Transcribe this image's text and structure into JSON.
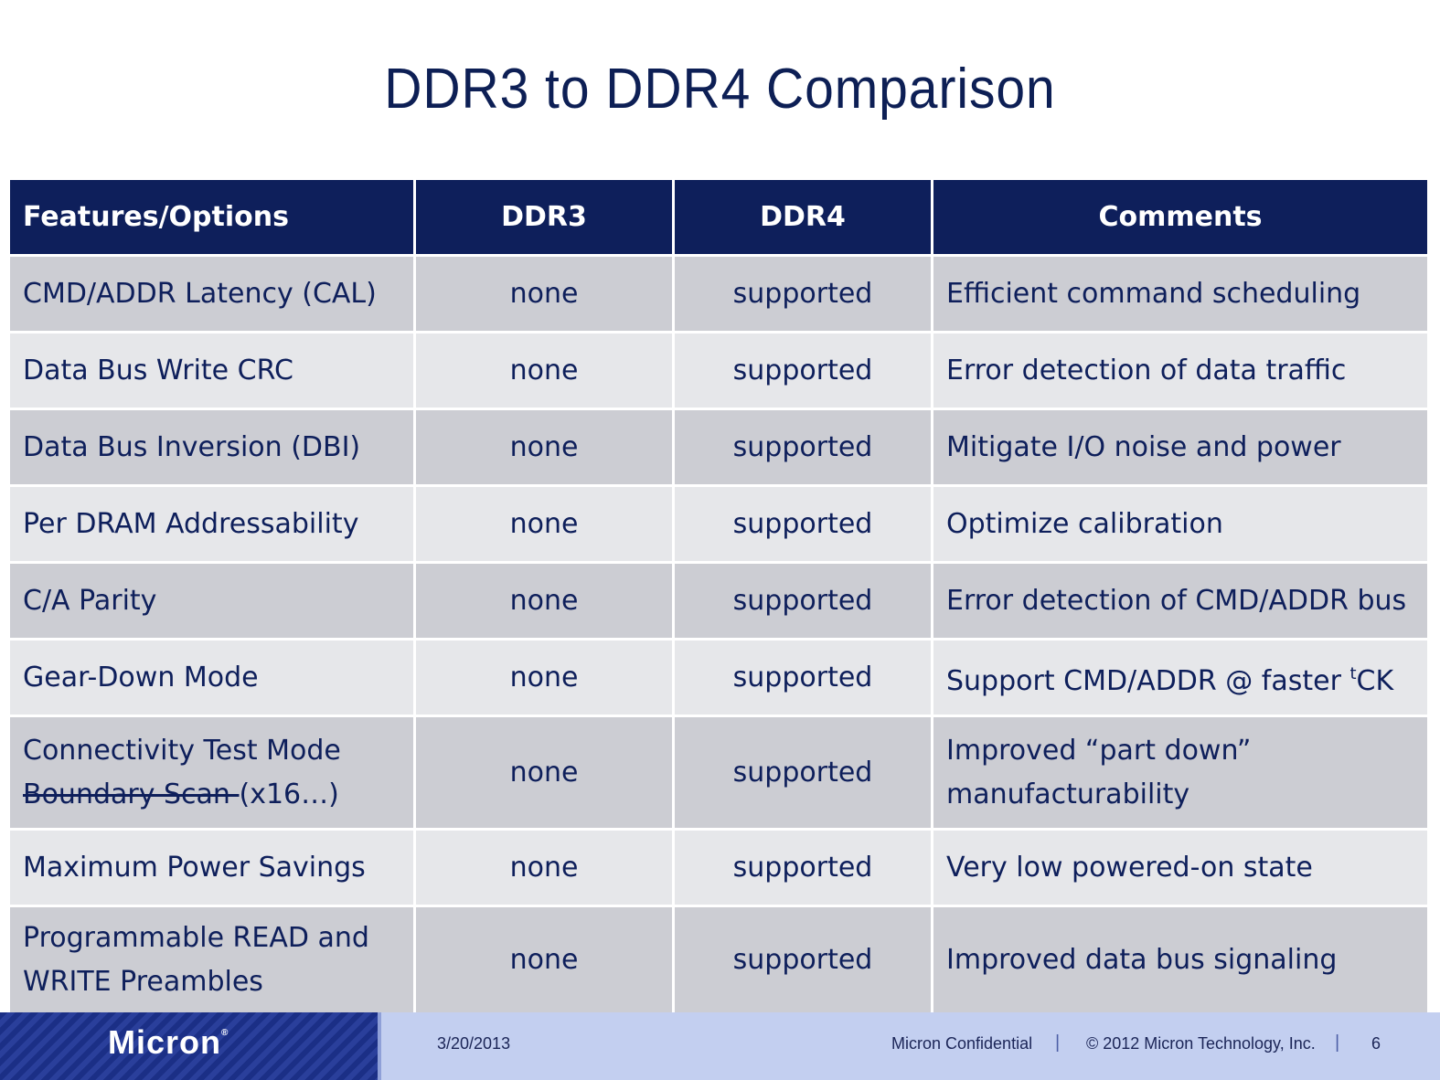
{
  "title": "DDR3 to DDR4 Comparison",
  "table": {
    "headers": [
      "Features/Options",
      "DDR3",
      "DDR4",
      "Comments"
    ],
    "rows": [
      {
        "feature": "CMD/ADDR Latency (CAL)",
        "ddr3": "none",
        "ddr4": "supported",
        "comment": "Efficient command scheduling"
      },
      {
        "feature": "Data Bus Write CRC",
        "ddr3": "none",
        "ddr4": "supported",
        "comment": "Error detection of data traffic"
      },
      {
        "feature": "Data Bus Inversion (DBI)",
        "ddr3": "none",
        "ddr4": "supported",
        "comment": "Mitigate I/O noise and power"
      },
      {
        "feature": "Per DRAM Addressability",
        "ddr3": "none",
        "ddr4": "supported",
        "comment": "Optimize calibration"
      },
      {
        "feature": "C/A Parity",
        "ddr3": "none",
        "ddr4": "supported",
        "comment": "Error detection of CMD/ADDR bus"
      },
      {
        "feature": "Gear-Down Mode",
        "ddr3": "none",
        "ddr4": "supported",
        "comment_main": "Support CMD/ADDR @ faster ",
        "comment_sup": "t",
        "comment_tail": "CK"
      },
      {
        "feature_line1": "Connectivity Test Mode",
        "feature_strike": "Boundary Scan ",
        "feature_tail": "(x16…)",
        "ddr3": "none",
        "ddr4": "supported",
        "comment_line1": "Improved “part down”",
        "comment_line2": "manufacturability"
      },
      {
        "feature": "Maximum Power Savings",
        "ddr3": "none",
        "ddr4": "supported",
        "comment": "Very low powered-on state"
      },
      {
        "feature_line1": "Programmable READ and",
        "feature_line2": "WRITE Preambles",
        "ddr3": "none",
        "ddr4": "supported",
        "comment": "Improved data bus signaling"
      }
    ]
  },
  "footer": {
    "logo": "Micron",
    "logo_reg": "®",
    "date": "3/20/2013",
    "confidential": "Micron Confidential",
    "separator": "|",
    "copyright": "© 2012 Micron Technology, Inc.",
    "page": "6"
  }
}
